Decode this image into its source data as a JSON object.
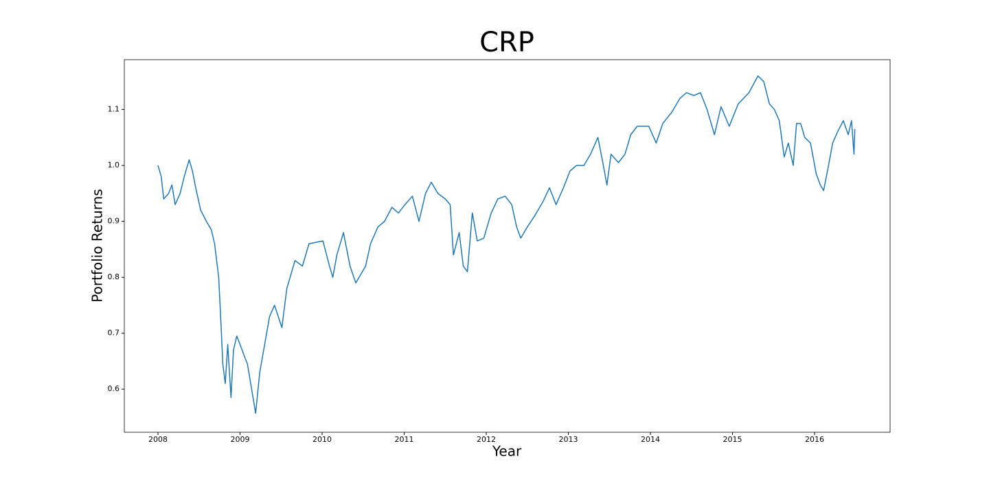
{
  "chart_data": {
    "type": "line",
    "title": "CRP",
    "x_label": "Year",
    "y_label": "Portfolio Returns",
    "color": "#1f77b4",
    "xlim": [
      2007.59,
      2016.92
    ],
    "ylim": [
      0.523,
      1.189
    ],
    "xticks": [
      2008,
      2009,
      2010,
      2011,
      2012,
      2013,
      2014,
      2015,
      2016
    ],
    "yticks": [
      0.6,
      0.7,
      0.8,
      0.9,
      {
        "value": 1,
        "label": "1.0"
      },
      1.1
    ],
    "x": [
      2008.0,
      2008.04,
      2008.07,
      2008.13,
      2008.17,
      2008.21,
      2008.27,
      2008.32,
      2008.38,
      2008.42,
      2008.46,
      2008.52,
      2008.59,
      2008.65,
      2008.69,
      2008.74,
      2008.77,
      2008.79,
      2008.82,
      2008.85,
      2008.89,
      2008.92,
      2008.96,
      2009.0,
      2009.05,
      2009.09,
      2009.13,
      2009.19,
      2009.24,
      2009.3,
      2009.36,
      2009.42,
      2009.51,
      2009.57,
      2009.67,
      2009.76,
      2009.84,
      2010.01,
      2010.09,
      2010.13,
      2010.18,
      2010.26,
      2010.34,
      2010.41,
      2010.47,
      2010.53,
      2010.59,
      2010.68,
      2010.76,
      2010.85,
      2010.93,
      2011.01,
      2011.1,
      2011.18,
      2011.26,
      2011.33,
      2011.41,
      2011.5,
      2011.56,
      2011.6,
      2011.67,
      2011.72,
      2011.77,
      2011.83,
      2011.89,
      2011.97,
      2012.06,
      2012.14,
      2012.23,
      2012.31,
      2012.37,
      2012.42,
      2012.5,
      2012.59,
      2012.69,
      2012.77,
      2012.85,
      2012.94,
      2013.02,
      2013.1,
      2013.19,
      2013.27,
      2013.36,
      2013.42,
      2013.47,
      2013.52,
      2013.61,
      2013.69,
      2013.76,
      2013.84,
      2013.9,
      2013.98,
      2014.07,
      2014.15,
      2014.26,
      2014.36,
      2014.44,
      2014.53,
      2014.61,
      2014.69,
      2014.78,
      2014.86,
      2014.96,
      2015.07,
      2015.2,
      2015.31,
      2015.38,
      2015.45,
      2015.51,
      2015.57,
      2015.63,
      2015.68,
      2015.74,
      2015.78,
      2015.83,
      2015.88,
      2015.95,
      2016.02,
      2016.07,
      2016.11,
      2016.17,
      2016.22,
      2016.28,
      2016.35,
      2016.41,
      2016.45,
      2016.48,
      2016.49
    ],
    "values": [
      1.0,
      0.98,
      0.94,
      0.95,
      0.965,
      0.93,
      0.95,
      0.98,
      1.01,
      0.99,
      0.96,
      0.92,
      0.9,
      0.885,
      0.86,
      0.8,
      0.71,
      0.645,
      0.61,
      0.68,
      0.585,
      0.67,
      0.695,
      0.68,
      0.66,
      0.645,
      0.61,
      0.557,
      0.63,
      0.68,
      0.73,
      0.75,
      0.71,
      0.78,
      0.83,
      0.82,
      0.86,
      0.865,
      0.82,
      0.8,
      0.84,
      0.88,
      0.82,
      0.79,
      0.805,
      0.82,
      0.86,
      0.89,
      0.9,
      0.925,
      0.915,
      0.93,
      0.945,
      0.9,
      0.95,
      0.97,
      0.95,
      0.94,
      0.93,
      0.84,
      0.88,
      0.82,
      0.81,
      0.915,
      0.865,
      0.87,
      0.915,
      0.94,
      0.945,
      0.93,
      0.89,
      0.87,
      0.89,
      0.91,
      0.935,
      0.96,
      0.93,
      0.96,
      0.99,
      1.0,
      1.0,
      1.02,
      1.05,
      1.005,
      0.965,
      1.02,
      1.005,
      1.02,
      1.055,
      1.07,
      1.07,
      1.07,
      1.04,
      1.075,
      1.095,
      1.12,
      1.13,
      1.125,
      1.13,
      1.1,
      1.055,
      1.105,
      1.07,
      1.11,
      1.13,
      1.16,
      1.15,
      1.11,
      1.1,
      1.08,
      1.015,
      1.04,
      1.0,
      1.075,
      1.075,
      1.05,
      1.04,
      0.985,
      0.965,
      0.955,
      1.0,
      1.04,
      1.06,
      1.08,
      1.055,
      1.08,
      1.02,
      1.065
    ]
  }
}
